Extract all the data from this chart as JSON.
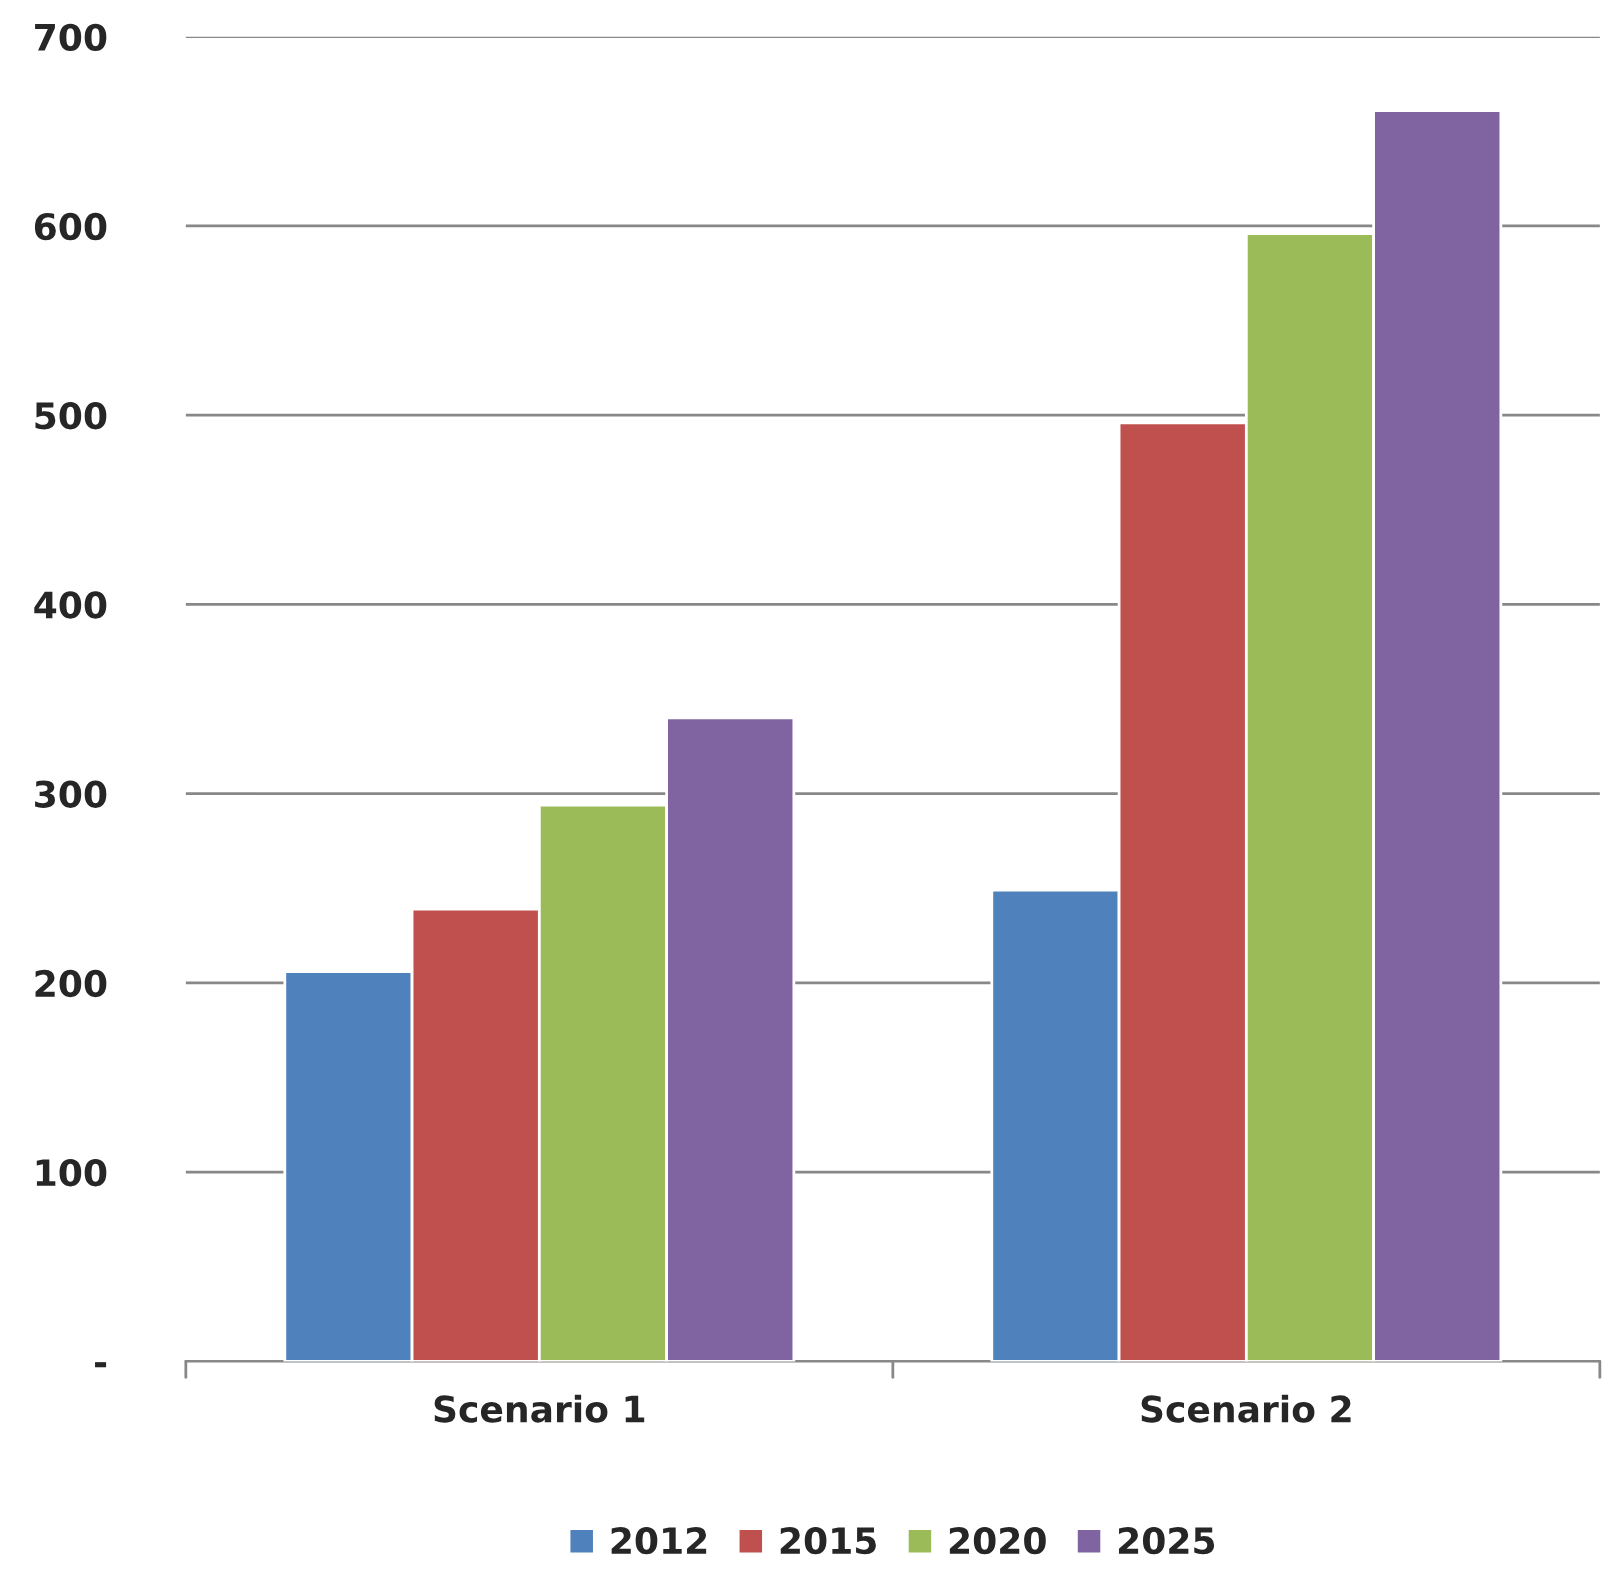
{
  "chart_data": {
    "type": "bar",
    "categories": [
      "Scenario 1",
      "Scenario 2"
    ],
    "series": [
      {
        "name": "2012",
        "color": "#4f81bd",
        "values": [
          206,
          249
        ]
      },
      {
        "name": "2015",
        "color": "#c0504d",
        "values": [
          239,
          496
        ]
      },
      {
        "name": "2020",
        "color": "#9bbb59",
        "values": [
          294,
          596
        ]
      },
      {
        "name": "2025",
        "color": "#8064a2",
        "values": [
          340,
          661
        ]
      }
    ],
    "ylim": [
      0,
      700
    ],
    "yticks": [
      {
        "value": 0,
        "label": "-"
      },
      100,
      200,
      300,
      400,
      500,
      600,
      700
    ],
    "grid": "y",
    "legend": "bottom"
  }
}
